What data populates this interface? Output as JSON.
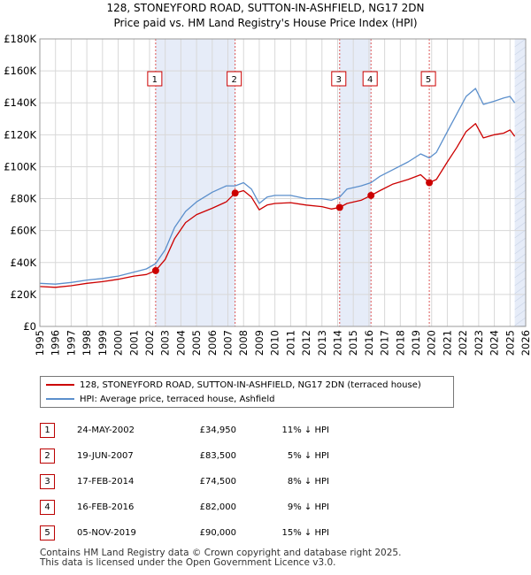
{
  "header": {
    "title_line1": "128, STONEYFORD ROAD, SUTTON-IN-ASHFIELD, NG17 2DN",
    "title_line2": "Price paid vs. HM Land Registry's House Price Index (HPI)"
  },
  "chart_data": {
    "type": "line",
    "title": "128, STONEYFORD ROAD, SUTTON-IN-ASHFIELD, NG17 2DN",
    "subtitle": "Price paid vs. HM Land Registry's House Price Index (HPI)",
    "xlabel": "",
    "ylabel": "",
    "xlim": [
      1995,
      2026
    ],
    "ylim": [
      0,
      180000
    ],
    "y_ticks": [
      0,
      20000,
      40000,
      60000,
      80000,
      100000,
      120000,
      140000,
      160000,
      180000
    ],
    "y_tick_labels": [
      "£0",
      "£20K",
      "£40K",
      "£60K",
      "£80K",
      "£100K",
      "£120K",
      "£140K",
      "£160K",
      "£180K"
    ],
    "x_ticks": [
      1995,
      1996,
      1997,
      1998,
      1999,
      2000,
      2001,
      2002,
      2003,
      2004,
      2005,
      2006,
      2007,
      2008,
      2009,
      2010,
      2011,
      2012,
      2013,
      2014,
      2015,
      2016,
      2017,
      2018,
      2019,
      2020,
      2021,
      2022,
      2023,
      2024,
      2025,
      2026
    ],
    "grid": true,
    "series": [
      {
        "name": "128, STONEYFORD ROAD, SUTTON-IN-ASHFIELD, NG17 2DN (terraced house)",
        "color": "#cc0000",
        "x": [
          1995.0,
          1996.0,
          1997.0,
          1998.0,
          1999.0,
          2000.0,
          2001.0,
          2001.8,
          2002.39,
          2003.0,
          2003.6,
          2004.3,
          2005.0,
          2006.0,
          2006.9,
          2007.46,
          2008.0,
          2008.5,
          2009.0,
          2009.5,
          2010.0,
          2011.0,
          2012.0,
          2013.0,
          2013.6,
          2014.13,
          2014.6,
          2015.5,
          2016.13,
          2016.7,
          2017.5,
          2018.5,
          2019.3,
          2019.85,
          2020.3,
          2021.0,
          2021.6,
          2022.2,
          2022.8,
          2023.3,
          2024.0,
          2024.6,
          2025.0,
          2025.3
        ],
        "y": [
          25000,
          24500,
          25500,
          27000,
          28000,
          29500,
          31500,
          32500,
          34950,
          42000,
          55000,
          65000,
          70000,
          74000,
          78000,
          83500,
          85000,
          81000,
          73000,
          76000,
          77000,
          77500,
          76000,
          75000,
          73500,
          74500,
          77000,
          79000,
          82000,
          85000,
          89000,
          92000,
          95000,
          90000,
          92000,
          103000,
          112000,
          122000,
          127000,
          118000,
          120000,
          121000,
          123000,
          119000
        ]
      },
      {
        "name": "HPI: Average price, terraced house, Ashfield",
        "color": "#5b8fcc",
        "x": [
          1995.0,
          1996.0,
          1997.0,
          1998.0,
          1999.0,
          2000.0,
          2001.0,
          2001.8,
          2002.39,
          2003.0,
          2003.6,
          2004.3,
          2005.0,
          2006.0,
          2006.9,
          2007.46,
          2008.0,
          2008.5,
          2009.0,
          2009.5,
          2010.0,
          2011.0,
          2012.0,
          2013.0,
          2013.6,
          2014.13,
          2014.6,
          2015.5,
          2016.13,
          2016.7,
          2017.5,
          2018.5,
          2019.3,
          2019.85,
          2020.3,
          2021.0,
          2021.6,
          2022.2,
          2022.8,
          2023.3,
          2024.0,
          2024.6,
          2025.0,
          2025.3
        ],
        "y": [
          27000,
          26500,
          27500,
          29000,
          30000,
          31500,
          34000,
          36000,
          39300,
          48000,
          62000,
          72000,
          78000,
          84000,
          88000,
          88000,
          90000,
          86000,
          77000,
          81000,
          82000,
          82000,
          80000,
          80000,
          79000,
          81000,
          86000,
          88000,
          90000,
          94000,
          98000,
          103000,
          108000,
          105500,
          109000,
          122000,
          133000,
          144000,
          149000,
          139000,
          141000,
          143000,
          144000,
          140000
        ]
      }
    ],
    "sales": [
      {
        "label": "1",
        "x": 2002.39,
        "y": 34950
      },
      {
        "label": "2",
        "x": 2007.46,
        "y": 83500
      },
      {
        "label": "3",
        "x": 2014.13,
        "y": 74500
      },
      {
        "label": "4",
        "x": 2016.13,
        "y": 82000
      },
      {
        "label": "5",
        "x": 2019.85,
        "y": 90000
      }
    ],
    "shaded_ranges": [
      [
        2002.39,
        2007.46
      ],
      [
        2014.13,
        2016.13
      ],
      [
        2025.3,
        2026.0
      ]
    ]
  },
  "legend": {
    "property_label": "128, STONEYFORD ROAD, SUTTON-IN-ASHFIELD, NG17 2DN (terraced house)",
    "hpi_label": "HPI: Average price, terraced house, Ashfield",
    "property_color": "#cc0000",
    "hpi_color": "#5b8fcc"
  },
  "transactions": [
    {
      "num": "1",
      "date": "24-MAY-2002",
      "price": "£34,950",
      "hpi": "11% ↓ HPI"
    },
    {
      "num": "2",
      "date": "19-JUN-2007",
      "price": "£83,500",
      "hpi": "5% ↓ HPI"
    },
    {
      "num": "3",
      "date": "17-FEB-2014",
      "price": "£74,500",
      "hpi": "8% ↓ HPI"
    },
    {
      "num": "4",
      "date": "16-FEB-2016",
      "price": "£82,000",
      "hpi": "9% ↓ HPI"
    },
    {
      "num": "5",
      "date": "05-NOV-2019",
      "price": "£90,000",
      "hpi": "15% ↓ HPI"
    }
  ],
  "footer": {
    "line1": "Contains HM Land Registry data © Crown copyright and database right 2025.",
    "line2": "This data is licensed under the Open Government Licence v3.0."
  }
}
